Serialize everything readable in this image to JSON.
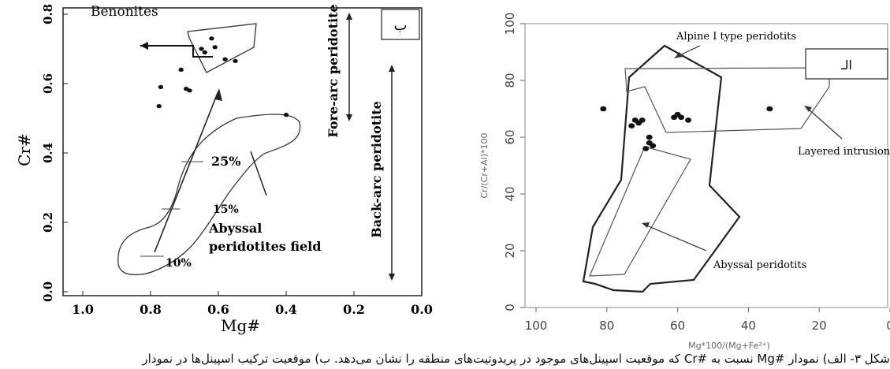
{
  "caption": "شکل ۳- الف) نمودار #Mg نسبت به #Cr که موقعیت اسپینل‌های موجود در پریدوتیت‌های منطقه را نشان می‌دهد. ب) موقعیت ترکیب اسپینل‌ها در نمودار",
  "chart_data": [
    {
      "type": "scatter",
      "panel_label": "ب",
      "xlabel": "Mg#",
      "ylabel": "Cr#",
      "xlim": [
        1.0,
        0.0
      ],
      "ylim": [
        0.0,
        0.9
      ],
      "x_ticks": [
        "1.0",
        "0.8",
        "0.6",
        "0.4",
        "0.2",
        "0.0"
      ],
      "y_ticks": [
        "0.0",
        "0.2",
        "0.4",
        "0.6",
        "0.8"
      ],
      "series": [
        {
          "points": [
            [
              0.77,
              0.59
            ],
            [
              0.775,
              0.535
            ],
            [
              0.71,
              0.64
            ],
            [
              0.695,
              0.585
            ],
            [
              0.685,
              0.58
            ],
            [
              0.65,
              0.7
            ],
            [
              0.64,
              0.69
            ],
            [
              0.62,
              0.73
            ],
            [
              0.61,
              0.705
            ],
            [
              0.58,
              0.67
            ],
            [
              0.55,
              0.665
            ],
            [
              0.4,
              0.51
            ]
          ]
        }
      ],
      "fields": {
        "benonites": "Benonites",
        "abyssal_line1": "Abyssal",
        "abyssal_line2": "peridotites field",
        "fore_arc": "Fore-arc peridotite",
        "back_arc": "Back-arc peridotite"
      },
      "melting_labels": [
        "25%",
        "15%",
        "10%"
      ]
    },
    {
      "type": "scatter",
      "panel_label": "الـ",
      "xlabel": "Mg*100/(Mg+Fe²⁺)",
      "ylabel": "Cr/(Cr+Al)*100",
      "xlim": [
        100,
        0
      ],
      "ylim": [
        0,
        100
      ],
      "x_ticks": [
        "100",
        "80",
        "60",
        "40",
        "20",
        "0"
      ],
      "y_ticks": [
        "0",
        "20",
        "40",
        "60",
        "80",
        "100"
      ],
      "series": [
        {
          "points": [
            [
              81,
              70
            ],
            [
              73,
              64
            ],
            [
              72,
              66
            ],
            [
              71,
              65
            ],
            [
              70,
              66
            ],
            [
              61,
              67
            ],
            [
              60,
              68
            ],
            [
              59,
              67
            ],
            [
              57,
              66
            ],
            [
              68,
              58
            ],
            [
              69,
              56
            ],
            [
              67,
              57
            ],
            [
              68,
              60
            ],
            [
              34,
              70
            ]
          ]
        }
      ],
      "fields": {
        "alpine": "Alpine I type peridotits",
        "layered": "Layered intrusions",
        "abyssal": "Abyssal peridotits"
      }
    }
  ]
}
